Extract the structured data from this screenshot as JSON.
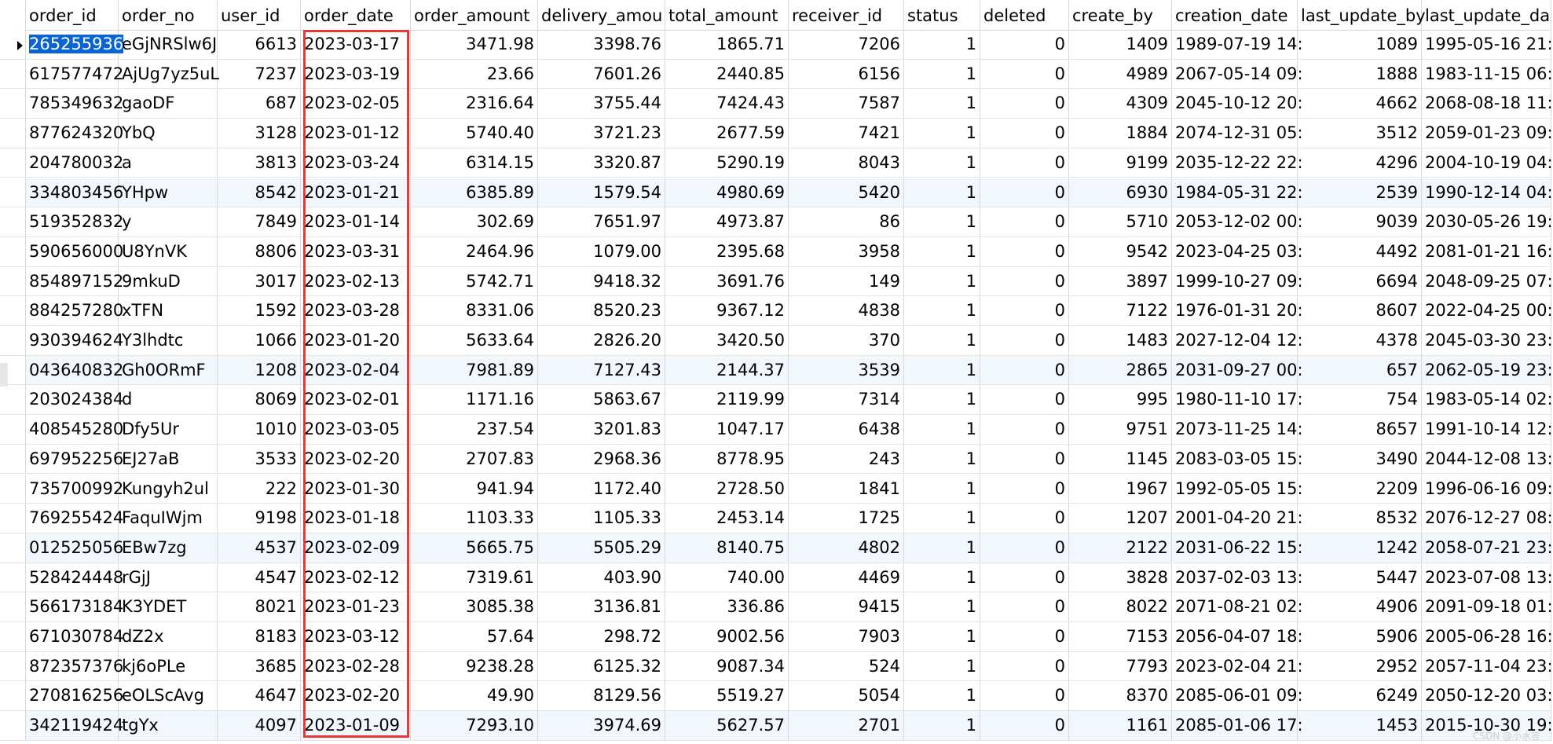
{
  "columns": [
    "order_id",
    "order_no",
    "user_id",
    "order_date",
    "order_amount",
    "delivery_amou",
    "total_amount",
    "receiver_id",
    "status",
    "deleted",
    "create_by",
    "creation_date",
    "last_update_by",
    "last_update_da"
  ],
  "rows": [
    [
      "265255936",
      "eGjNRSlw6J",
      "6613",
      "2023-03-17",
      "3471.98",
      "3398.76",
      "1865.71",
      "7206",
      "1",
      "0",
      "1409",
      "1989-07-19 14:",
      "1089",
      "1995-05-16 21:"
    ],
    [
      "617577472",
      "AjUg7yz5uL",
      "7237",
      "2023-03-19",
      "23.66",
      "7601.26",
      "2440.85",
      "6156",
      "1",
      "0",
      "4989",
      "2067-05-14 09:",
      "1888",
      "1983-11-15 06:"
    ],
    [
      "785349632",
      "gaoDF",
      "687",
      "2023-02-05",
      "2316.64",
      "3755.44",
      "7424.43",
      "7587",
      "1",
      "0",
      "4309",
      "2045-10-12 20:",
      "4662",
      "2068-08-18 11:"
    ],
    [
      "877624320",
      "YbQ",
      "3128",
      "2023-01-12",
      "5740.40",
      "3721.23",
      "2677.59",
      "7421",
      "1",
      "0",
      "1884",
      "2074-12-31 05:",
      "3512",
      "2059-01-23 09:"
    ],
    [
      "204780032",
      "a",
      "3813",
      "2023-03-24",
      "6314.15",
      "3320.87",
      "5290.19",
      "8043",
      "1",
      "0",
      "9199",
      "2035-12-22 22:",
      "4296",
      "2004-10-19 04:"
    ],
    [
      "334803456",
      "YHpw",
      "8542",
      "2023-01-21",
      "6385.89",
      "1579.54",
      "4980.69",
      "5420",
      "1",
      "0",
      "6930",
      "1984-05-31 22:",
      "2539",
      "1990-12-14 04:"
    ],
    [
      "519352832",
      "y",
      "7849",
      "2023-01-14",
      "302.69",
      "7651.97",
      "4973.87",
      "86",
      "1",
      "0",
      "5710",
      "2053-12-02 00:",
      "9039",
      "2030-05-26 19:"
    ],
    [
      "590656000",
      "U8YnVK",
      "8806",
      "2023-03-31",
      "2464.96",
      "1079.00",
      "2395.68",
      "3958",
      "1",
      "0",
      "9542",
      "2023-04-25 03:",
      "4492",
      "2081-01-21 16:"
    ],
    [
      "854897152",
      "9mkuD",
      "3017",
      "2023-02-13",
      "5742.71",
      "9418.32",
      "3691.76",
      "149",
      "1",
      "0",
      "3897",
      "1999-10-27 09:",
      "6694",
      "2048-09-25 07:"
    ],
    [
      "884257280",
      "xTFN",
      "1592",
      "2023-03-28",
      "8331.06",
      "8520.23",
      "9367.12",
      "4838",
      "1",
      "0",
      "7122",
      "1976-01-31 20:",
      "8607",
      "2022-04-25 00:"
    ],
    [
      "930394624",
      "Y3lhdtc",
      "1066",
      "2023-01-20",
      "5633.64",
      "2826.20",
      "3420.50",
      "370",
      "1",
      "0",
      "1483",
      "2027-12-04 12:",
      "4378",
      "2045-03-30 23:"
    ],
    [
      "043640832",
      "Gh0ORmF",
      "1208",
      "2023-02-04",
      "7981.89",
      "7127.43",
      "2144.37",
      "3539",
      "1",
      "0",
      "2865",
      "2031-09-27 00:",
      "657",
      "2062-05-19 23:"
    ],
    [
      "203024384",
      "d",
      "8069",
      "2023-02-01",
      "1171.16",
      "5863.67",
      "2119.99",
      "7314",
      "1",
      "0",
      "995",
      "1980-11-10 17:",
      "754",
      "1983-05-14 02:"
    ],
    [
      "408545280",
      "Dfy5Ur",
      "1010",
      "2023-03-05",
      "237.54",
      "3201.83",
      "1047.17",
      "6438",
      "1",
      "0",
      "9751",
      "2073-11-25 14:",
      "8657",
      "1991-10-14 12:"
    ],
    [
      "697952256",
      "EJ27aB",
      "3533",
      "2023-02-20",
      "2707.83",
      "2968.36",
      "8778.95",
      "243",
      "1",
      "0",
      "1145",
      "2083-03-05 15:",
      "3490",
      "2044-12-08 13:"
    ],
    [
      "735700992",
      "Kungyh2ul",
      "222",
      "2023-01-30",
      "941.94",
      "1172.40",
      "2728.50",
      "1841",
      "1",
      "0",
      "1967",
      "1992-05-05 15:",
      "2209",
      "1996-06-16 09:"
    ],
    [
      "769255424",
      "FaquIWjm",
      "9198",
      "2023-01-18",
      "1103.33",
      "1105.33",
      "2453.14",
      "1725",
      "1",
      "0",
      "1207",
      "2001-04-20 21:",
      "8532",
      "2076-12-27 08:"
    ],
    [
      "012525056",
      "EBw7zg",
      "4537",
      "2023-02-09",
      "5665.75",
      "5505.29",
      "8140.75",
      "4802",
      "1",
      "0",
      "2122",
      "2031-06-22 15:",
      "1242",
      "2058-07-21 23:"
    ],
    [
      "528424448",
      "rGjJ",
      "4547",
      "2023-02-12",
      "7319.61",
      "403.90",
      "740.00",
      "4469",
      "1",
      "0",
      "3828",
      "2037-02-03 13:",
      "5447",
      "2023-07-08 13:"
    ],
    [
      "566173184",
      "K3YDET",
      "8021",
      "2023-01-23",
      "3085.38",
      "3136.81",
      "336.86",
      "9415",
      "1",
      "0",
      "8022",
      "2071-08-21 02:",
      "4906",
      "2091-09-18 01:"
    ],
    [
      "671030784",
      "dZ2x",
      "8183",
      "2023-03-12",
      "57.64",
      "298.72",
      "9002.56",
      "7903",
      "1",
      "0",
      "7153",
      "2056-04-07 18:",
      "5906",
      "2005-06-28 16:"
    ],
    [
      "872357376",
      "kj6oPLe",
      "3685",
      "2023-02-28",
      "9238.28",
      "6125.32",
      "9087.34",
      "524",
      "1",
      "0",
      "7793",
      "2023-02-04 21:",
      "2952",
      "2057-11-04 23:"
    ],
    [
      "270816256",
      "eOLScAvg",
      "4647",
      "2023-02-20",
      "49.90",
      "8129.56",
      "5519.27",
      "5054",
      "1",
      "0",
      "8370",
      "2085-06-01 09:",
      "6249",
      "2050-12-20 03:"
    ],
    [
      "342119424",
      "tgYx",
      "4097",
      "2023-01-09",
      "7293.10",
      "3974.69",
      "5627.57",
      "2701",
      "1",
      "0",
      "1161",
      "2085-01-06 17:",
      "1453",
      "2015-10-30 19:"
    ]
  ],
  "selected_cell": "265255936",
  "highlighted_column": "order_date",
  "watermark": "CSDN @小水答"
}
